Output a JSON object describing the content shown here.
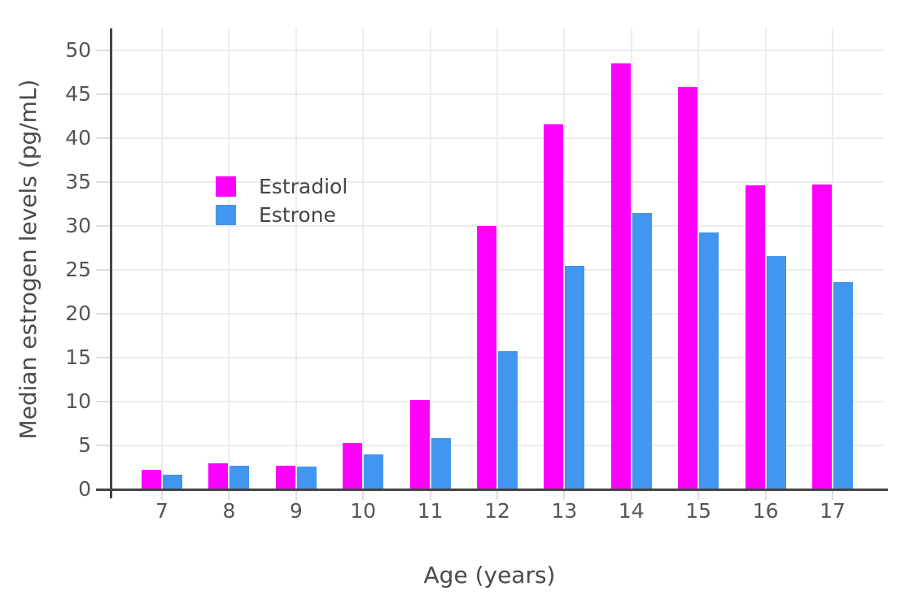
{
  "chart_data": {
    "type": "bar",
    "title": "",
    "xlabel": "Age (years)",
    "ylabel": "Median estrogen levels (pg/mL)",
    "categories": [
      "7",
      "8",
      "9",
      "10",
      "11",
      "12",
      "13",
      "14",
      "15",
      "16",
      "17"
    ],
    "series": [
      {
        "name": "Estradiol",
        "color": "#FF00FF",
        "values": [
          2.2,
          3.0,
          2.7,
          5.3,
          10.2,
          30.0,
          41.6,
          48.5,
          45.8,
          34.6,
          34.7
        ]
      },
      {
        "name": "Estrone",
        "color": "#4196F0",
        "values": [
          1.7,
          2.7,
          2.6,
          4.0,
          5.8,
          15.7,
          25.5,
          31.5,
          29.3,
          26.6,
          23.6
        ]
      }
    ],
    "yticks": [
      0,
      5,
      10,
      15,
      20,
      25,
      30,
      35,
      40,
      45,
      50
    ],
    "ylim": [
      0,
      52.5
    ],
    "grid": true,
    "legend_position": "inside top-left",
    "colors": {
      "background": "#FFFFFF",
      "grid": "#ECECEC",
      "tick": "#DEDEDE",
      "axis_line": "#444444",
      "tick_label": "#555555",
      "axis_title": "#4A4A4A",
      "legend_text": "#444444"
    }
  }
}
